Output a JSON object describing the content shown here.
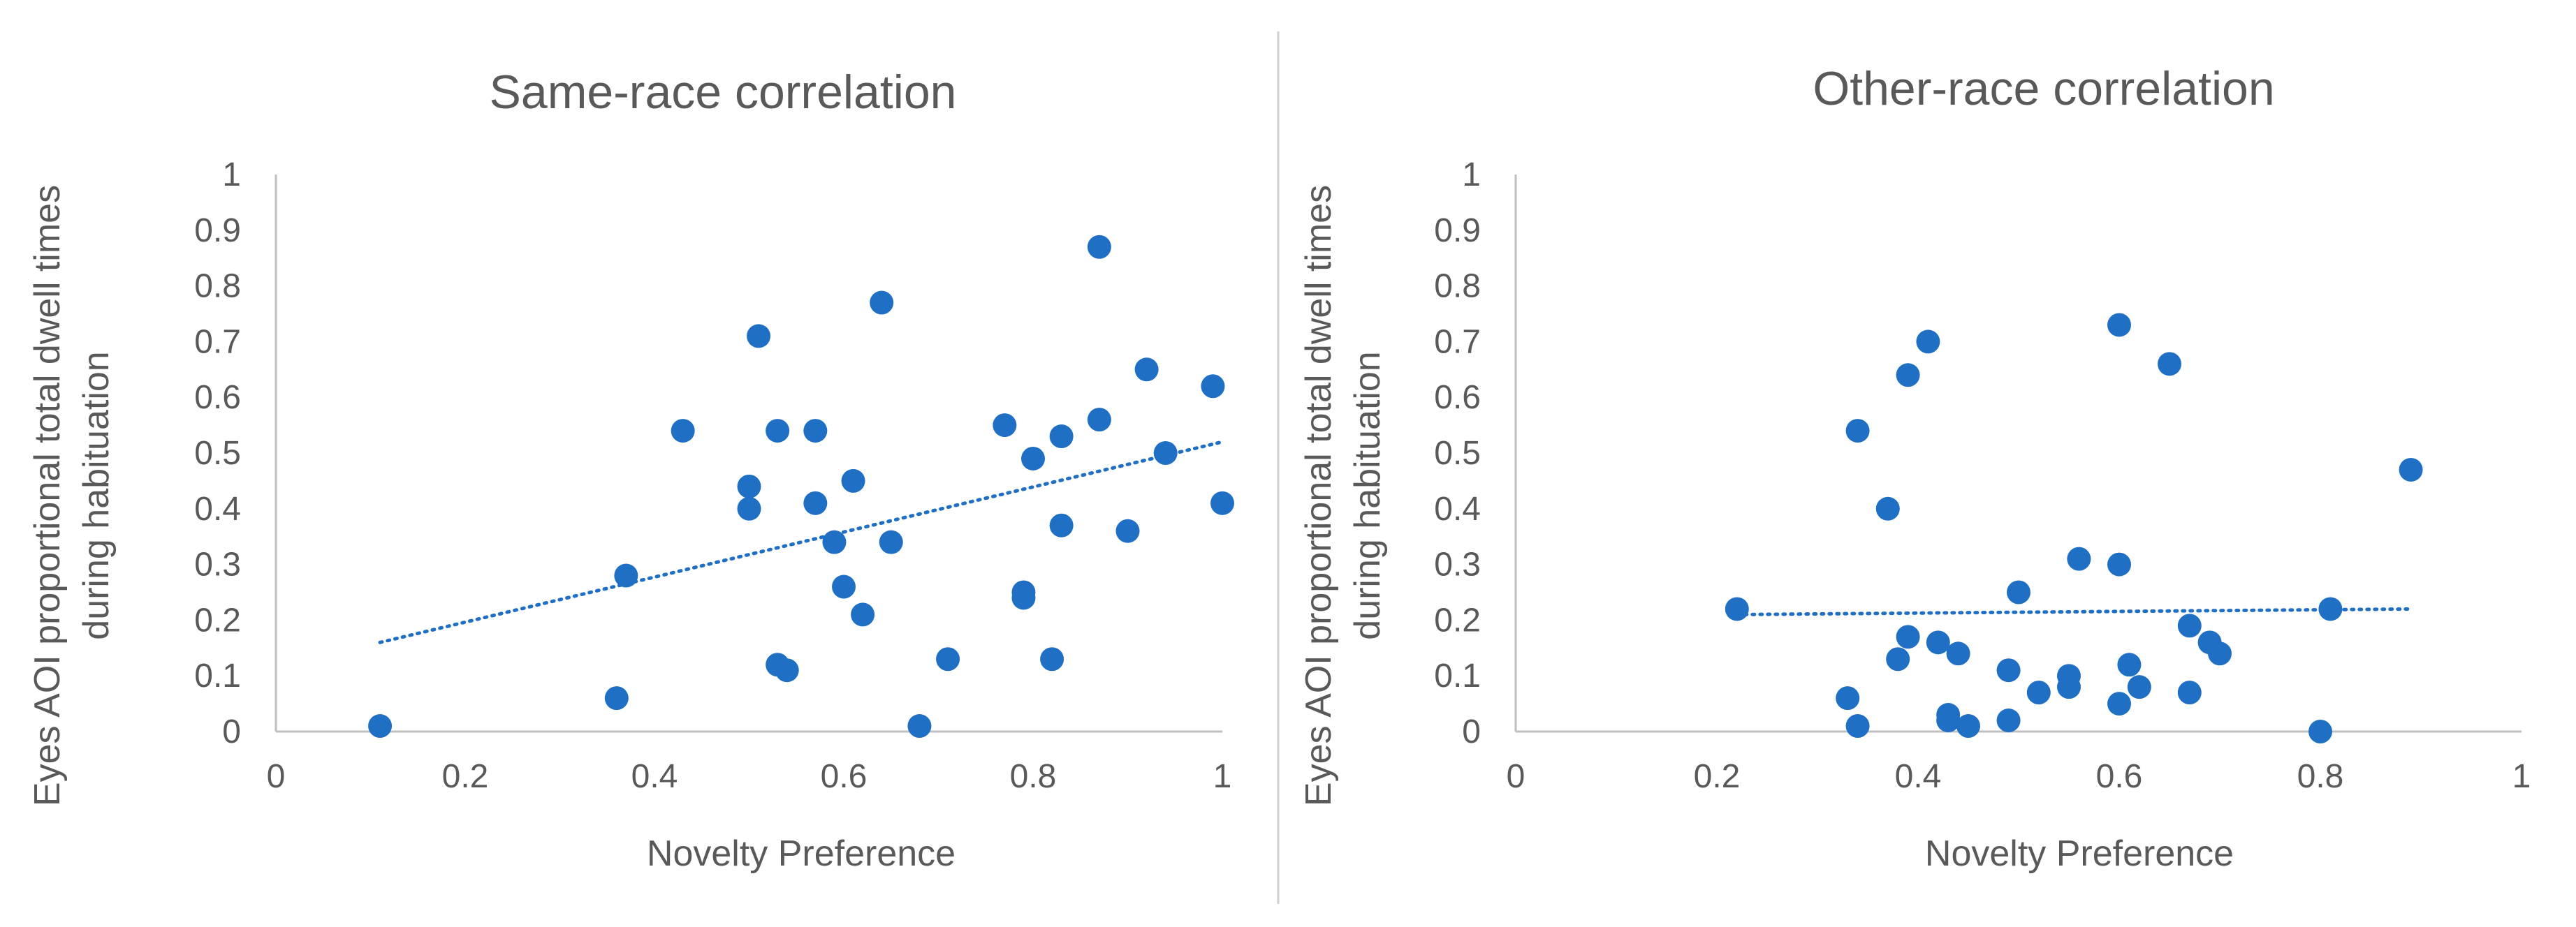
{
  "colors": {
    "marker": "#1F6FC5",
    "trendline": "#1F6FC5",
    "axis_line": "#BFBFBF",
    "divider": "#D0D0D0",
    "text": "#595959"
  },
  "chart_data": [
    {
      "type": "scatter",
      "title": "Same-race correlation",
      "xlabel": "Novelty Preference",
      "ylabel_lines": [
        "Eyes AOI proportional total dwell times",
        "during habituation"
      ],
      "xlim": [
        0,
        1
      ],
      "ylim": [
        0,
        1
      ],
      "x_ticks": [
        "0",
        "0.2",
        "0.4",
        "0.6",
        "0.8",
        "1"
      ],
      "y_ticks": [
        "0",
        "0.1",
        "0.2",
        "0.3",
        "0.4",
        "0.5",
        "0.6",
        "0.7",
        "0.8",
        "0.9",
        "1"
      ],
      "grid": false,
      "trendline": {
        "style": "dotted",
        "x": [
          0.11,
          1.0
        ],
        "y": [
          0.16,
          0.52
        ]
      },
      "points": [
        [
          0.11,
          0.01
        ],
        [
          0.36,
          0.06
        ],
        [
          0.37,
          0.28
        ],
        [
          0.43,
          0.54
        ],
        [
          0.5,
          0.44
        ],
        [
          0.5,
          0.4
        ],
        [
          0.51,
          0.71
        ],
        [
          0.53,
          0.54
        ],
        [
          0.53,
          0.12
        ],
        [
          0.54,
          0.11
        ],
        [
          0.57,
          0.54
        ],
        [
          0.57,
          0.41
        ],
        [
          0.59,
          0.34
        ],
        [
          0.6,
          0.26
        ],
        [
          0.61,
          0.45
        ],
        [
          0.62,
          0.21
        ],
        [
          0.64,
          0.77
        ],
        [
          0.65,
          0.34
        ],
        [
          0.68,
          0.01
        ],
        [
          0.71,
          0.13
        ],
        [
          0.77,
          0.55
        ],
        [
          0.79,
          0.25
        ],
        [
          0.79,
          0.24
        ],
        [
          0.8,
          0.49
        ],
        [
          0.82,
          0.13
        ],
        [
          0.83,
          0.53
        ],
        [
          0.83,
          0.37
        ],
        [
          0.87,
          0.87
        ],
        [
          0.87,
          0.56
        ],
        [
          0.9,
          0.36
        ],
        [
          0.92,
          0.65
        ],
        [
          0.94,
          0.5
        ],
        [
          0.99,
          0.62
        ],
        [
          1.0,
          0.41
        ]
      ]
    },
    {
      "type": "scatter",
      "title": "Other-race correlation",
      "xlabel": "Novelty Preference",
      "ylabel_lines": [
        "Eyes AOI proportional total dwell times",
        "during habituation"
      ],
      "xlim": [
        0,
        1
      ],
      "ylim": [
        0,
        1
      ],
      "x_ticks": [
        "0",
        "0.2",
        "0.4",
        "0.6",
        "0.8",
        "1"
      ],
      "y_ticks": [
        "0",
        "0.1",
        "0.2",
        "0.3",
        "0.4",
        "0.5",
        "0.6",
        "0.7",
        "0.8",
        "0.9",
        "1"
      ],
      "grid": false,
      "trendline": {
        "style": "dotted",
        "x": [
          0.22,
          0.89
        ],
        "y": [
          0.21,
          0.22
        ]
      },
      "points": [
        [
          0.22,
          0.22
        ],
        [
          0.33,
          0.06
        ],
        [
          0.34,
          0.54
        ],
        [
          0.34,
          0.01
        ],
        [
          0.37,
          0.4
        ],
        [
          0.38,
          0.13
        ],
        [
          0.39,
          0.64
        ],
        [
          0.39,
          0.17
        ],
        [
          0.41,
          0.7
        ],
        [
          0.42,
          0.16
        ],
        [
          0.43,
          0.03
        ],
        [
          0.43,
          0.02
        ],
        [
          0.44,
          0.14
        ],
        [
          0.45,
          0.01
        ],
        [
          0.49,
          0.11
        ],
        [
          0.49,
          0.02
        ],
        [
          0.5,
          0.25
        ],
        [
          0.52,
          0.07
        ],
        [
          0.55,
          0.1
        ],
        [
          0.55,
          0.08
        ],
        [
          0.56,
          0.31
        ],
        [
          0.6,
          0.73
        ],
        [
          0.6,
          0.3
        ],
        [
          0.6,
          0.05
        ],
        [
          0.61,
          0.12
        ],
        [
          0.62,
          0.08
        ],
        [
          0.65,
          0.66
        ],
        [
          0.67,
          0.19
        ],
        [
          0.67,
          0.07
        ],
        [
          0.69,
          0.16
        ],
        [
          0.7,
          0.14
        ],
        [
          0.8,
          0.0
        ],
        [
          0.81,
          0.22
        ],
        [
          0.89,
          0.47
        ]
      ]
    }
  ]
}
